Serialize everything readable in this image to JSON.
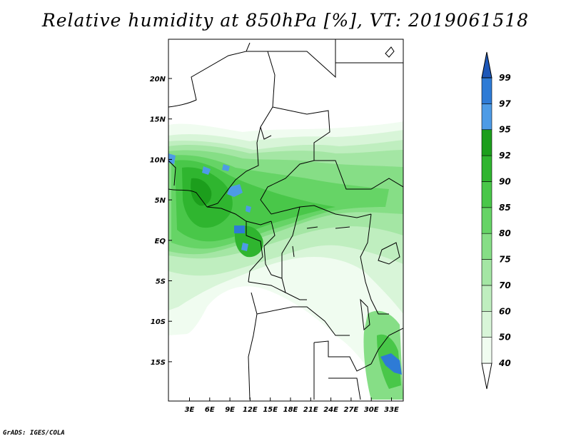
{
  "title": "Relative humidity at 850hPa [%], VT: 2019061518",
  "footer": "GrADS: IGES/COLA",
  "map": {
    "lon_ticks": [
      "3E",
      "6E",
      "9E",
      "12E",
      "15E",
      "18E",
      "21E",
      "24E",
      "27E",
      "30E",
      "33E"
    ],
    "lat_ticks": [
      "20N",
      "15N",
      "10N",
      "5N",
      "EQ",
      "5S",
      "10S",
      "15S"
    ]
  },
  "colorbar": {
    "levels": [
      "40",
      "50",
      "60",
      "70",
      "75",
      "80",
      "85",
      "90",
      "92",
      "95",
      "97",
      "99"
    ],
    "colors": [
      "#f0fcf0",
      "#d8f5d8",
      "#bfeebf",
      "#a4e6a4",
      "#86de86",
      "#66d466",
      "#49c749",
      "#2fb52f",
      "#1c9e1c",
      "#4d9be6",
      "#2e7bd6",
      "#1d57b8"
    ]
  },
  "palette": {
    "rh40": "#f0fcf0",
    "rh50": "#d8f5d8",
    "rh60": "#bfeebf",
    "rh70": "#a4e6a4",
    "rh75": "#86de86",
    "rh80": "#66d466",
    "rh85": "#49c749",
    "rh90": "#2fb52f",
    "rh92": "#1c9e1c",
    "rh95": "#4d9be6",
    "rh97": "#2e7bd6"
  }
}
